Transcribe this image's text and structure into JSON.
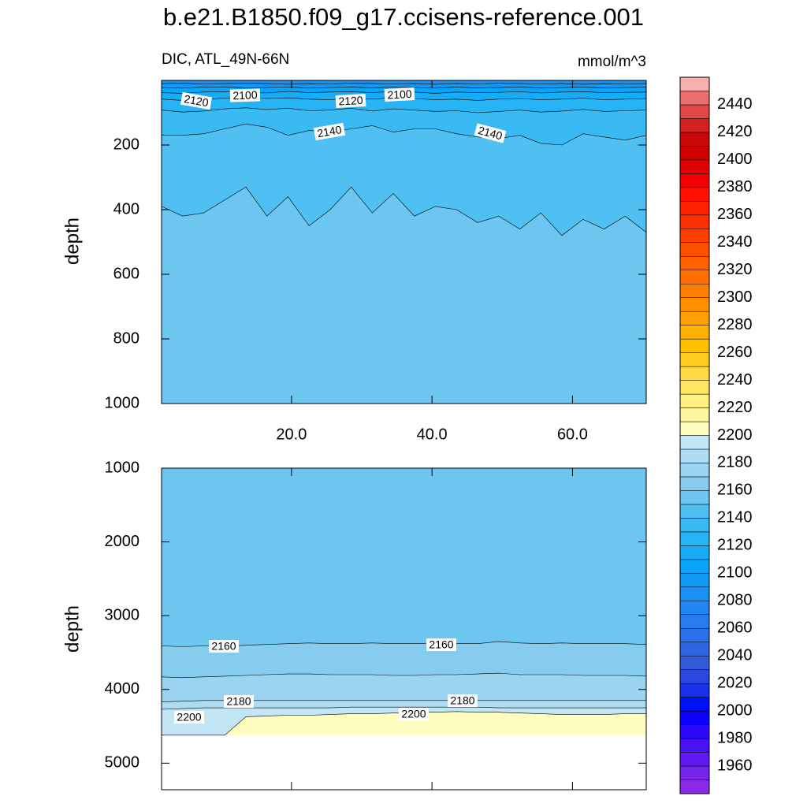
{
  "chart_data": {
    "type": "contour",
    "title": "b.e21.B1850.f09_g17.ccisens-reference.001",
    "subtitle": "DIC, ATL_49N-66N",
    "units": "mmol/m^3",
    "ylabel": "depth",
    "x": [
      1.5,
      4.5,
      7.5,
      10.5,
      13.5,
      16.5,
      19.5,
      22.5,
      25.5,
      28.5,
      31.5,
      34.5,
      37.5,
      40.5,
      43.5,
      46.5,
      49.5,
      52.5,
      55.5,
      58.5,
      61.5,
      64.5,
      67.5,
      70.5
    ],
    "xlim": [
      1.5,
      70.5
    ],
    "xticks": [
      {
        "value": 20,
        "label": "20.0"
      },
      {
        "value": 40,
        "label": "40.0"
      },
      {
        "value": 60,
        "label": "60.0"
      }
    ],
    "colorbar": {
      "clim": [
        1940,
        2460
      ],
      "ticks": [
        1960,
        1980,
        2000,
        2020,
        2040,
        2060,
        2080,
        2100,
        2120,
        2140,
        2160,
        2180,
        2200,
        2220,
        2240,
        2260,
        2280,
        2300,
        2320,
        2340,
        2360,
        2380,
        2400,
        2420,
        2440
      ],
      "colors": [
        "#8a2ae6",
        "#7626ec",
        "#6018f2",
        "#4a10f6",
        "#2c08fa",
        "#0c00fe",
        "#0010f6",
        "#1830ea",
        "#2a48e0",
        "#345adc",
        "#3064e2",
        "#2c70ea",
        "#287cf0",
        "#2286f2",
        "#1a90f4",
        "#129af6",
        "#0aa4f8",
        "#16acf6",
        "#26b4f4",
        "#3abaf2",
        "#50c0f2",
        "#6cc6f0",
        "#86ccee",
        "#9ad4f0",
        "#aedcf2",
        "#c2e6f6",
        "#fffcc0",
        "#fff4a0",
        "#fff080",
        "#ffe660",
        "#ffda40",
        "#ffcc20",
        "#ffc000",
        "#ffb000",
        "#ffa000",
        "#ff9000",
        "#ff8000",
        "#ff7000",
        "#ff6000",
        "#ff5000",
        "#ff4000",
        "#ff3000",
        "#ff2000",
        "#ff1000",
        "#f00000",
        "#e00000",
        "#d00000",
        "#c80808",
        "#d42020",
        "#e04848",
        "#ea7070",
        "#f8b0b0"
      ]
    },
    "panels": [
      {
        "ylim": [
          0,
          1000
        ],
        "yticks": [
          200,
          400,
          600,
          800,
          1000
        ],
        "contours": [
          {
            "level": 2090,
            "depth": [
              10,
              9,
              11,
              10,
              9,
              10,
              12,
              10,
              11,
              9,
              10,
              11,
              10,
              12,
              10,
              11,
              9,
              10,
              11,
              10,
              12,
              10,
              11,
              10
            ]
          },
          {
            "level": 2100,
            "depth": [
              22,
              24,
              21,
              20,
              23,
              22,
              20,
              24,
              22,
              21,
              23,
              20,
              22,
              24,
              21,
              23,
              22,
              20,
              24,
              22,
              21,
              23,
              22,
              21
            ]
          },
          {
            "level": 2110,
            "depth": [
              38,
              40,
              36,
              35,
              37,
              39,
              34,
              38,
              36,
              35,
              38,
              34,
              36,
              40,
              36,
              38,
              37,
              35,
              39,
              36,
              35,
              38,
              37,
              36
            ]
          },
          {
            "level": 2120,
            "depth": [
              58,
              62,
              60,
              55,
              52,
              56,
              54,
              58,
              60,
              55,
              58,
              54,
              56,
              60,
              58,
              62,
              58,
              56,
              60,
              58,
              55,
              60,
              58,
              56
            ]
          },
          {
            "level": 2130,
            "depth": [
              92,
              98,
              95,
              88,
              85,
              90,
              86,
              94,
              92,
              86,
              95,
              88,
              92,
              96,
              94,
              100,
              96,
              92,
              98,
              95,
              90,
              96,
              94,
              92
            ]
          },
          {
            "level": 2140,
            "depth": [
              170,
              170,
              165,
              150,
              135,
              145,
              170,
              155,
              160,
              150,
              140,
              160,
              150,
              150,
              165,
              175,
              180,
              170,
              195,
              200,
              165,
              175,
              185,
              170
            ]
          },
          {
            "level": 2150,
            "depth": [
              390,
              420,
              410,
              370,
              330,
              420,
              360,
              450,
              400,
              330,
              410,
              350,
              420,
              390,
              400,
              440,
              420,
              460,
              410,
              480,
              430,
              460,
              420,
              470
            ]
          }
        ],
        "contour_labels": [
          2120,
          2100,
          2120,
          2100,
          2140,
          2140
        ]
      },
      {
        "ylim": [
          1000,
          5360
        ],
        "yticks": [
          1000,
          2000,
          3000,
          4000,
          5000
        ],
        "data_depth_max": 4620,
        "contours": [
          {
            "level": 2160,
            "depth": [
              3410,
              3420,
              3410,
              3420,
              3400,
              3390,
              3380,
              3370,
              3380,
              3380,
              3370,
              3380,
              3380,
              3370,
              3380,
              3380,
              3350,
              3370,
              3380,
              3370,
              3380,
              3380,
              3380,
              3390
            ]
          },
          {
            "level": 2170,
            "depth": [
              3830,
              3840,
              3830,
              3820,
              3810,
              3800,
              3790,
              3790,
              3800,
              3800,
              3800,
              3810,
              3810,
              3800,
              3800,
              3790,
              3780,
              3800,
              3800,
              3800,
              3810,
              3810,
              3810,
              3820
            ]
          },
          {
            "level": 2180,
            "depth": [
              4170,
              4160,
              4150,
              4150,
              4150,
              4150,
              4150,
              4150,
              4150,
              4150,
              4150,
              4150,
              4150,
              4150,
              4150,
              4150,
              4150,
              4150,
              4150,
              4150,
              4150,
              4150,
              4150,
              4150
            ]
          },
          {
            "level": 2190,
            "depth": [
              4270,
              4260,
              4250,
              4250,
              4250,
              4250,
              4250,
              4250,
              4250,
              4240,
              4240,
              4240,
              4240,
              4240,
              4240,
              4240,
              4250,
              4250,
              4250,
              4250,
              4250,
              4250,
              4250,
              4250
            ]
          },
          {
            "level": 2200,
            "depth": [
              4620,
              4620,
              4620,
              4620,
              4370,
              4360,
              4350,
              4350,
              4340,
              4330,
              4330,
              4320,
              4310,
              4310,
              4300,
              4310,
              4310,
              4320,
              4330,
              4340,
              4340,
              4340,
              4330,
              4330
            ]
          }
        ],
        "contour_labels": [
          2160,
          2160,
          2180,
          2180,
          2200,
          2200
        ]
      }
    ]
  }
}
